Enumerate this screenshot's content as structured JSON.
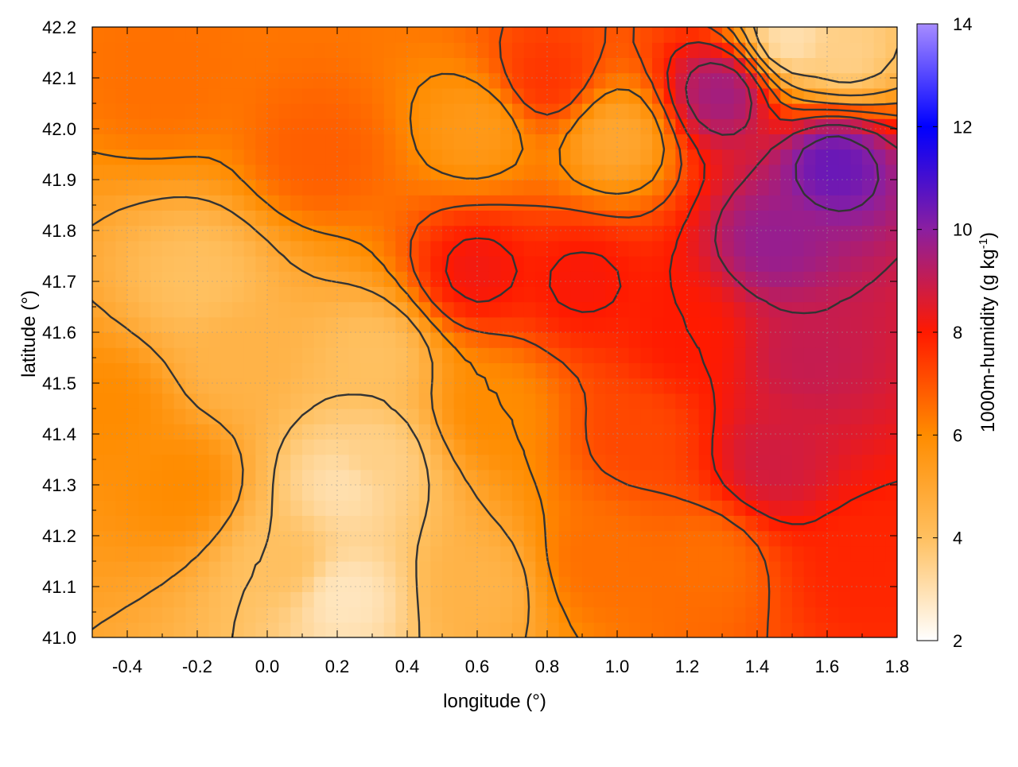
{
  "chart_data": {
    "type": "heatmap",
    "title": "",
    "xlabel": "longitude (°)",
    "ylabel": "latitude (°)",
    "xlim": [
      -0.5,
      1.8
    ],
    "ylim": [
      41.0,
      42.2
    ],
    "x_ticks": [
      -0.4,
      -0.2,
      0.0,
      0.2,
      0.4,
      0.6,
      0.8,
      1.0,
      1.2,
      1.4,
      1.6,
      1.8
    ],
    "x_tick_labels": [
      "-0.4",
      "-0.2",
      "0.0",
      "0.2",
      "0.4",
      "0.6",
      "0.8",
      "1.0",
      "1.2",
      "1.4",
      "1.6",
      "1.8"
    ],
    "y_ticks": [
      41.0,
      41.1,
      41.2,
      41.3,
      41.4,
      41.5,
      41.6,
      41.7,
      41.8,
      41.9,
      42.0,
      42.1,
      42.2
    ],
    "y_tick_labels": [
      "41.0",
      "41.1",
      "41.2",
      "41.3",
      "41.4",
      "41.5",
      "41.6",
      "41.7",
      "41.8",
      "41.9",
      "42.0",
      "42.1",
      "42.2"
    ],
    "grid": true,
    "colorbar": {
      "label_main": "1000m-humidity (g kg",
      "label_sup": "-1",
      "label_end": ")",
      "range": [
        2,
        14
      ],
      "ticks": [
        2,
        4,
        6,
        8,
        10,
        12,
        14
      ],
      "tick_labels": [
        "2",
        "4",
        "6",
        "8",
        "10",
        "12",
        "14"
      ],
      "stops": [
        {
          "value": 2,
          "color": "#ffffff"
        },
        {
          "value": 4,
          "color": "#ffc060"
        },
        {
          "value": 6,
          "color": "#ff8c00"
        },
        {
          "value": 8,
          "color": "#ff1a00"
        },
        {
          "value": 10,
          "color": "#8b1fa0"
        },
        {
          "value": 12,
          "color": "#0000ff"
        },
        {
          "value": 14,
          "color": "#a78cff"
        }
      ]
    },
    "field_centers": [
      {
        "lon": 1.62,
        "lat": 41.93,
        "value": 10.5
      },
      {
        "lon": 1.45,
        "lat": 41.78,
        "value": 9.8
      },
      {
        "lon": 1.3,
        "lat": 42.07,
        "value": 9.6
      },
      {
        "lon": 1.55,
        "lat": 41.55,
        "value": 9.0
      },
      {
        "lon": 1.45,
        "lat": 41.35,
        "value": 8.8
      },
      {
        "lon": 0.6,
        "lat": 41.72,
        "value": 8.2
      },
      {
        "lon": 0.9,
        "lat": 41.7,
        "value": 8.1
      },
      {
        "lon": 1.2,
        "lat": 41.6,
        "value": 8.0
      },
      {
        "lon": 1.7,
        "lat": 41.15,
        "value": 7.8
      },
      {
        "lon": 0.8,
        "lat": 42.1,
        "value": 7.5
      },
      {
        "lon": 1.05,
        "lat": 41.4,
        "value": 7.2
      },
      {
        "lon": 1.25,
        "lat": 41.15,
        "value": 6.5
      },
      {
        "lon": 0.95,
        "lat": 41.15,
        "value": 6.5
      },
      {
        "lon": -0.3,
        "lat": 42.1,
        "value": 6.5
      },
      {
        "lon": 0.15,
        "lat": 41.95,
        "value": 6.8
      },
      {
        "lon": 0.65,
        "lat": 41.45,
        "value": 6.0
      },
      {
        "lon": -0.45,
        "lat": 41.45,
        "value": 6.0
      },
      {
        "lon": -0.25,
        "lat": 41.3,
        "value": 6.0
      },
      {
        "lon": 0.6,
        "lat": 42.0,
        "value": 5.5
      },
      {
        "lon": 1.0,
        "lat": 41.98,
        "value": 5.0
      },
      {
        "lon": -0.1,
        "lat": 41.55,
        "value": 4.5
      },
      {
        "lon": 0.3,
        "lat": 41.35,
        "value": 3.5
      },
      {
        "lon": -0.2,
        "lat": 41.7,
        "value": 4.0
      },
      {
        "lon": 0.05,
        "lat": 41.15,
        "value": 4.0
      },
      {
        "lon": 0.22,
        "lat": 41.08,
        "value": 2.8
      },
      {
        "lon": 0.22,
        "lat": 41.3,
        "value": 3.0
      },
      {
        "lon": 0.6,
        "lat": 41.1,
        "value": 4.5
      },
      {
        "lon": 1.65,
        "lat": 42.15,
        "value": 3.5
      },
      {
        "lon": 1.5,
        "lat": 42.18,
        "value": 3.0
      },
      {
        "lon": 0.3,
        "lat": 41.55,
        "value": 4.0
      }
    ]
  }
}
